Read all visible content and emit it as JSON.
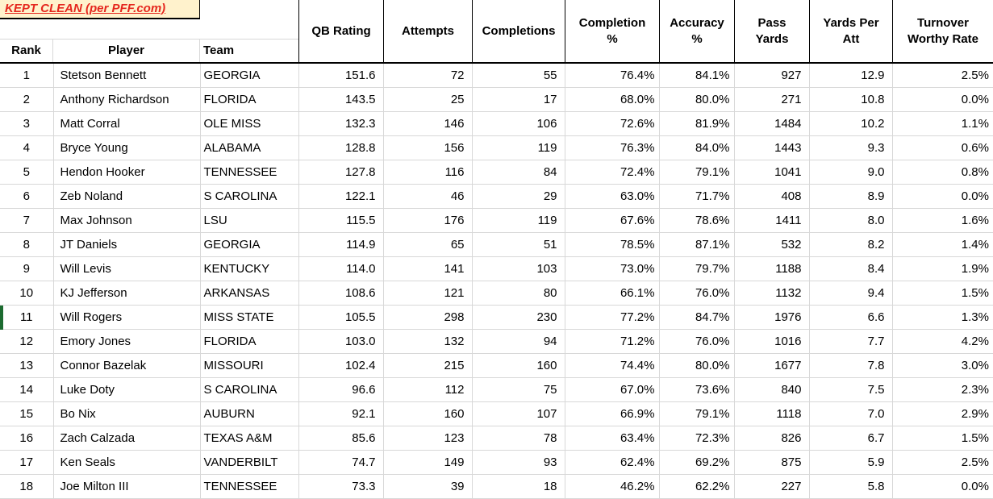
{
  "title": "KEPT CLEAN (per PFF.com)",
  "colors": {
    "title_background": "#fff2cc",
    "title_text": "#e5271e",
    "grid_line": "#d8d8d8",
    "header_border": "#000000",
    "selection_marker": "#1c6b30"
  },
  "columns": {
    "rank": "Rank",
    "player": "Player",
    "team": "Team",
    "stats": [
      "QB Rating",
      "Attempts",
      "Completions",
      "Completion\n%",
      "Accuracy\n%",
      "Pass\nYards",
      "Yards Per\nAtt",
      "Turnover\nWorthy Rate"
    ]
  },
  "rows": [
    {
      "rank": "1",
      "player": "Stetson Bennett",
      "team": "GEORGIA",
      "qb_rating": "151.6",
      "attempts": "72",
      "completions": "55",
      "completion_pct": "76.4%",
      "accuracy_pct": "84.1%",
      "pass_yards": "927",
      "yards_per_att": "12.9",
      "turnover_worthy_rate": "2.5%"
    },
    {
      "rank": "2",
      "player": "Anthony Richardson",
      "team": "FLORIDA",
      "qb_rating": "143.5",
      "attempts": "25",
      "completions": "17",
      "completion_pct": "68.0%",
      "accuracy_pct": "80.0%",
      "pass_yards": "271",
      "yards_per_att": "10.8",
      "turnover_worthy_rate": "0.0%"
    },
    {
      "rank": "3",
      "player": "Matt Corral",
      "team": "OLE MISS",
      "qb_rating": "132.3",
      "attempts": "146",
      "completions": "106",
      "completion_pct": "72.6%",
      "accuracy_pct": "81.9%",
      "pass_yards": "1484",
      "yards_per_att": "10.2",
      "turnover_worthy_rate": "1.1%"
    },
    {
      "rank": "4",
      "player": "Bryce Young",
      "team": "ALABAMA",
      "qb_rating": "128.8",
      "attempts": "156",
      "completions": "119",
      "completion_pct": "76.3%",
      "accuracy_pct": "84.0%",
      "pass_yards": "1443",
      "yards_per_att": "9.3",
      "turnover_worthy_rate": "0.6%"
    },
    {
      "rank": "5",
      "player": "Hendon Hooker",
      "team": "TENNESSEE",
      "qb_rating": "127.8",
      "attempts": "116",
      "completions": "84",
      "completion_pct": "72.4%",
      "accuracy_pct": "79.1%",
      "pass_yards": "1041",
      "yards_per_att": "9.0",
      "turnover_worthy_rate": "0.8%"
    },
    {
      "rank": "6",
      "player": "Zeb Noland",
      "team": "S CAROLINA",
      "qb_rating": "122.1",
      "attempts": "46",
      "completions": "29",
      "completion_pct": "63.0%",
      "accuracy_pct": "71.7%",
      "pass_yards": "408",
      "yards_per_att": "8.9",
      "turnover_worthy_rate": "0.0%"
    },
    {
      "rank": "7",
      "player": "Max Johnson",
      "team": "LSU",
      "qb_rating": "115.5",
      "attempts": "176",
      "completions": "119",
      "completion_pct": "67.6%",
      "accuracy_pct": "78.6%",
      "pass_yards": "1411",
      "yards_per_att": "8.0",
      "turnover_worthy_rate": "1.6%"
    },
    {
      "rank": "8",
      "player": "JT Daniels",
      "team": "GEORGIA",
      "qb_rating": "114.9",
      "attempts": "65",
      "completions": "51",
      "completion_pct": "78.5%",
      "accuracy_pct": "87.1%",
      "pass_yards": "532",
      "yards_per_att": "8.2",
      "turnover_worthy_rate": "1.4%"
    },
    {
      "rank": "9",
      "player": "Will Levis",
      "team": "KENTUCKY",
      "qb_rating": "114.0",
      "attempts": "141",
      "completions": "103",
      "completion_pct": "73.0%",
      "accuracy_pct": "79.7%",
      "pass_yards": "1188",
      "yards_per_att": "8.4",
      "turnover_worthy_rate": "1.9%"
    },
    {
      "rank": "10",
      "player": "KJ Jefferson",
      "team": "ARKANSAS",
      "qb_rating": "108.6",
      "attempts": "121",
      "completions": "80",
      "completion_pct": "66.1%",
      "accuracy_pct": "76.0%",
      "pass_yards": "1132",
      "yards_per_att": "9.4",
      "turnover_worthy_rate": "1.5%"
    },
    {
      "rank": "11",
      "player": "Will Rogers",
      "team": "MISS STATE",
      "qb_rating": "105.5",
      "attempts": "298",
      "completions": "230",
      "completion_pct": "77.2%",
      "accuracy_pct": "84.7%",
      "pass_yards": "1976",
      "yards_per_att": "6.6",
      "turnover_worthy_rate": "1.3%"
    },
    {
      "rank": "12",
      "player": "Emory Jones",
      "team": "FLORIDA",
      "qb_rating": "103.0",
      "attempts": "132",
      "completions": "94",
      "completion_pct": "71.2%",
      "accuracy_pct": "76.0%",
      "pass_yards": "1016",
      "yards_per_att": "7.7",
      "turnover_worthy_rate": "4.2%"
    },
    {
      "rank": "13",
      "player": "Connor Bazelak",
      "team": "MISSOURI",
      "qb_rating": "102.4",
      "attempts": "215",
      "completions": "160",
      "completion_pct": "74.4%",
      "accuracy_pct": "80.0%",
      "pass_yards": "1677",
      "yards_per_att": "7.8",
      "turnover_worthy_rate": "3.0%"
    },
    {
      "rank": "14",
      "player": "Luke Doty",
      "team": "S CAROLINA",
      "qb_rating": "96.6",
      "attempts": "112",
      "completions": "75",
      "completion_pct": "67.0%",
      "accuracy_pct": "73.6%",
      "pass_yards": "840",
      "yards_per_att": "7.5",
      "turnover_worthy_rate": "2.3%"
    },
    {
      "rank": "15",
      "player": "Bo Nix",
      "team": "AUBURN",
      "qb_rating": "92.1",
      "attempts": "160",
      "completions": "107",
      "completion_pct": "66.9%",
      "accuracy_pct": "79.1%",
      "pass_yards": "1118",
      "yards_per_att": "7.0",
      "turnover_worthy_rate": "2.9%"
    },
    {
      "rank": "16",
      "player": "Zach Calzada",
      "team": "TEXAS A&M",
      "qb_rating": "85.6",
      "attempts": "123",
      "completions": "78",
      "completion_pct": "63.4%",
      "accuracy_pct": "72.3%",
      "pass_yards": "826",
      "yards_per_att": "6.7",
      "turnover_worthy_rate": "1.5%"
    },
    {
      "rank": "17",
      "player": "Ken Seals",
      "team": "VANDERBILT",
      "qb_rating": "74.7",
      "attempts": "149",
      "completions": "93",
      "completion_pct": "62.4%",
      "accuracy_pct": "69.2%",
      "pass_yards": "875",
      "yards_per_att": "5.9",
      "turnover_worthy_rate": "2.5%"
    },
    {
      "rank": "18",
      "player": "Joe Milton III",
      "team": "TENNESSEE",
      "qb_rating": "73.3",
      "attempts": "39",
      "completions": "18",
      "completion_pct": "46.2%",
      "accuracy_pct": "62.2%",
      "pass_yards": "227",
      "yards_per_att": "5.8",
      "turnover_worthy_rate": "0.0%"
    }
  ]
}
